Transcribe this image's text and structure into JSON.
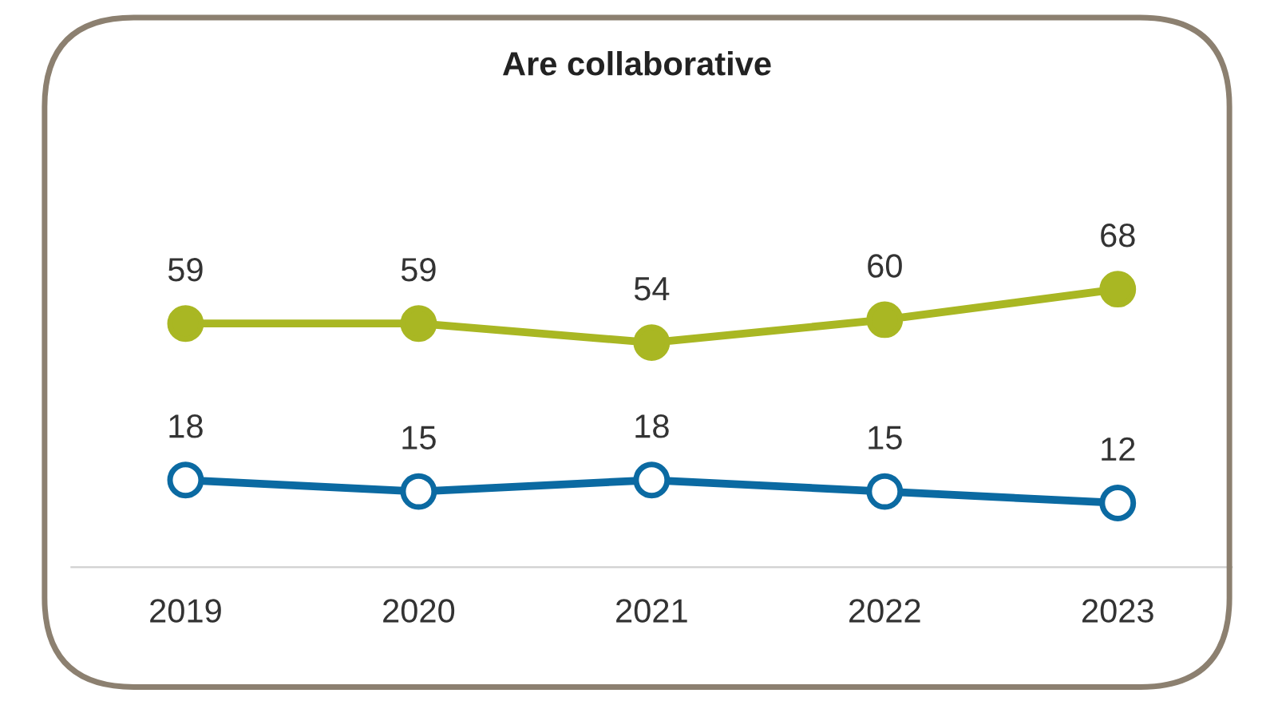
{
  "chart_data": {
    "type": "line",
    "title": "Are collaborative",
    "categories": [
      "2019",
      "2020",
      "2021",
      "2022",
      "2023"
    ],
    "series": [
      {
        "color": "#a9b723",
        "values": [
          59,
          59,
          54,
          60,
          68
        ]
      },
      {
        "color": "#0b6aa2",
        "values": [
          18,
          15,
          18,
          15,
          12
        ]
      }
    ],
    "tick_labels": "x",
    "data_labels": true,
    "marker": "circle",
    "line_style": "solid",
    "grid": false,
    "legend": false
  }
}
